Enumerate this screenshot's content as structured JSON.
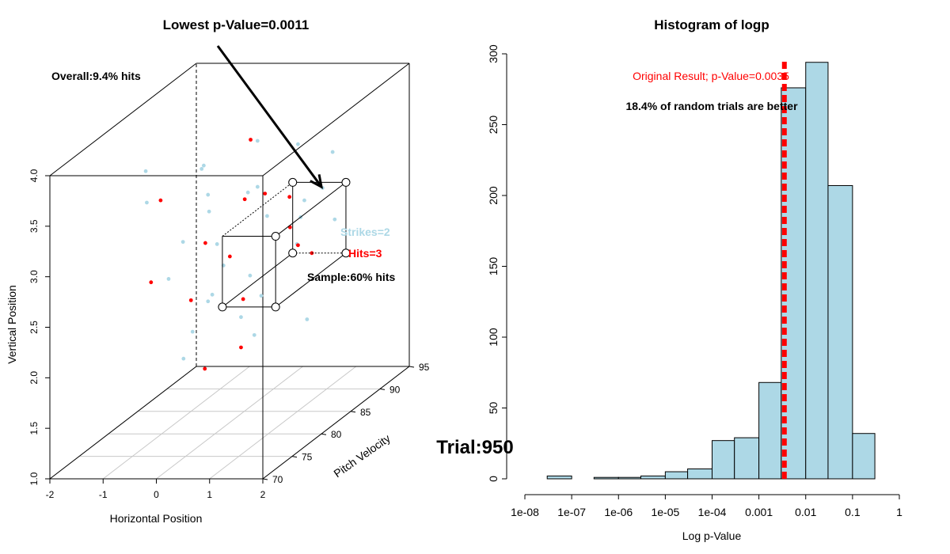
{
  "chart_data": [
    {
      "type": "scatter",
      "projection": "3d",
      "title": "Lowest p-Value=0.0011",
      "xlabel": "Horizontal Position",
      "ylabel": "Vertical Position",
      "zlabel": "Pitch Velocity",
      "xlim": [
        -2,
        2
      ],
      "ylim": [
        1.0,
        4.0
      ],
      "zlim": [
        70,
        95
      ],
      "x_ticks": [
        "-2",
        "-1",
        "0",
        "1",
        "2"
      ],
      "y_ticks": [
        "1.0",
        "1.5",
        "2.0",
        "2.5",
        "3.0",
        "3.5",
        "4.0"
      ],
      "z_ticks": [
        "70",
        "75",
        "80",
        "85",
        "90",
        "95"
      ],
      "annotations": {
        "overall": "Overall:9.4% hits",
        "sample": "Sample:60% hits",
        "strikes": "Strikes=2",
        "hits": "Hits=3"
      },
      "sample_box": {
        "x": [
          0.25,
          1.25
        ],
        "y": [
          2.3,
          3.0
        ],
        "z": [
          79,
          91
        ]
      },
      "arrow_to": {
        "x": 0.9,
        "y": 3.0,
        "z": 90
      },
      "colors": {
        "strikes": "#add8e6",
        "hits": "#ff0000"
      },
      "series": [
        {
          "name": "Strikes",
          "values": [
            [
              -0.6,
              2.9,
              80
            ],
            [
              0.4,
              3.3,
              82
            ],
            [
              1.1,
              2.7,
              84
            ],
            [
              -0.2,
              2.1,
              78
            ],
            [
              0.9,
              3.6,
              86
            ],
            [
              -1.2,
              2.4,
              83
            ],
            [
              0.1,
              2.8,
              88
            ],
            [
              1.5,
              3.1,
              81
            ],
            [
              -0.8,
              3.4,
              85
            ],
            [
              0.6,
              2.2,
              79
            ],
            [
              -0.3,
              3.0,
              90
            ],
            [
              1.2,
              2.5,
              77
            ],
            [
              -1.5,
              3.2,
              82
            ],
            [
              0.3,
              1.8,
              84
            ],
            [
              0.8,
              3.9,
              80
            ],
            [
              -0.9,
              2.0,
              87
            ],
            [
              1.7,
              2.9,
              85
            ],
            [
              -0.1,
              3.7,
              79
            ],
            [
              0.5,
              2.6,
              75
            ],
            [
              -1.1,
              2.8,
              89
            ],
            [
              1.0,
              3.3,
              91
            ],
            [
              -0.5,
              2.4,
              86
            ],
            [
              0.2,
              3.5,
              77
            ],
            [
              1.4,
              2.0,
              83
            ],
            [
              -1.3,
              3.6,
              80
            ],
            [
              0.7,
              2.9,
              92
            ],
            [
              -0.7,
              1.7,
              81
            ],
            [
              1.9,
              3.4,
              78
            ],
            [
              -0.4,
              2.7,
              84
            ],
            [
              0.0,
              2.3,
              86
            ]
          ]
        },
        {
          "name": "Hits",
          "values": [
            [
              -0.4,
              2.8,
              82
            ],
            [
              0.5,
              3.2,
              84
            ],
            [
              -1.2,
              2.5,
              80
            ],
            [
              0.9,
              2.6,
              86
            ],
            [
              -0.8,
              3.4,
              78
            ],
            [
              0.2,
              2.2,
              83
            ],
            [
              1.3,
              3.0,
              81
            ],
            [
              -0.1,
              3.6,
              87
            ],
            [
              0.6,
              1.9,
              79
            ],
            [
              -1.0,
              2.1,
              85
            ],
            [
              0.3,
              2.9,
              90
            ],
            [
              1.0,
              3.5,
              76
            ],
            [
              -0.6,
              2.4,
              88
            ],
            [
              1.6,
              2.7,
              82
            ],
            [
              -0.3,
              1.6,
              81
            ]
          ]
        }
      ]
    },
    {
      "type": "bar",
      "subtype": "histogram",
      "title": "Histogram of logp",
      "xlabel": "Log p-Value",
      "ylabel": "",
      "x_scale": "log",
      "x_ticks": [
        "1e-08",
        "1e-07",
        "1e-06",
        "1e-05",
        "1e-04",
        "0.001",
        "0.01",
        "0.1",
        "1"
      ],
      "y_ticks": [
        "0",
        "50",
        "100",
        "150",
        "200",
        "250",
        "300"
      ],
      "ylim": [
        0,
        300
      ],
      "bins": [
        {
          "from": 2e-08,
          "to": 3e-08,
          "count": 0
        },
        {
          "from": 3e-08,
          "to": 1e-07,
          "count": 2
        },
        {
          "from": 1e-07,
          "to": 3e-07,
          "count": 0
        },
        {
          "from": 3e-07,
          "to": 1e-06,
          "count": 1
        },
        {
          "from": 1e-06,
          "to": 3e-06,
          "count": 1
        },
        {
          "from": 3e-06,
          "to": 1e-05,
          "count": 2
        },
        {
          "from": 1e-05,
          "to": 3e-05,
          "count": 5
        },
        {
          "from": 3e-05,
          "to": 0.0001,
          "count": 7
        },
        {
          "from": 0.0001,
          "to": 0.0003,
          "count": 27
        },
        {
          "from": 0.0003,
          "to": 0.001,
          "count": 29
        },
        {
          "from": 0.001,
          "to": 0.003,
          "count": 68
        },
        {
          "from": 0.003,
          "to": 0.01,
          "count": 276
        },
        {
          "from": 0.01,
          "to": 0.03,
          "count": 294
        },
        {
          "from": 0.03,
          "to": 0.1,
          "count": 207
        },
        {
          "from": 0.1,
          "to": 0.3,
          "count": 32
        }
      ],
      "vline": {
        "x": 0.0035,
        "color": "#ff0000"
      },
      "bar_color": "#add8e6",
      "annotations": {
        "original": "Original Result; p-Value=0.0035",
        "better": "18.4% of random trials are better"
      }
    }
  ],
  "overlay": {
    "trial": "Trial:950"
  }
}
